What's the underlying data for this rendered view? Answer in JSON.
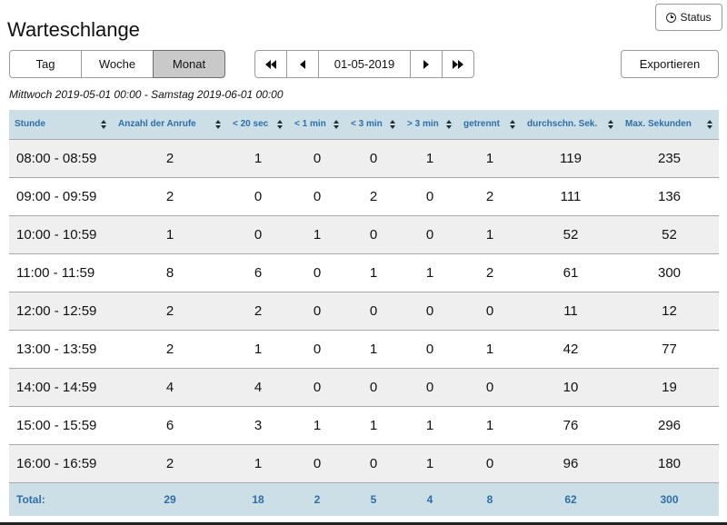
{
  "page": {
    "title": "Warteschlange"
  },
  "status_button": {
    "label": "Status",
    "icon": "clock-icon"
  },
  "period_tabs": [
    {
      "label": "Tag",
      "active": false
    },
    {
      "label": "Woche",
      "active": false
    },
    {
      "label": "Monat",
      "active": true
    }
  ],
  "date_nav": {
    "date": "01-05-2019",
    "icons": [
      "double-chevron-left-icon",
      "chevron-left-icon",
      "chevron-right-icon",
      "double-chevron-right-icon"
    ]
  },
  "export_button": {
    "label": "Exportieren"
  },
  "range_text": "Mittwoch 2019-05-01 00:00 - Samstag 2019-06-01 00:00",
  "table": {
    "columns": [
      "Stunde",
      "Anzahl der Anrufe",
      "< 20 sec",
      "< 1 min",
      "< 3 min",
      "> 3 min",
      "getrennt",
      "durchschn. Sek.",
      "Max. Sekunden"
    ],
    "rows": [
      [
        "08:00 - 08:59",
        "2",
        "1",
        "0",
        "0",
        "1",
        "1",
        "119",
        "235"
      ],
      [
        "09:00 - 09:59",
        "2",
        "0",
        "0",
        "2",
        "0",
        "2",
        "111",
        "136"
      ],
      [
        "10:00 - 10:59",
        "1",
        "0",
        "1",
        "0",
        "0",
        "1",
        "52",
        "52"
      ],
      [
        "11:00 - 11:59",
        "8",
        "6",
        "0",
        "1",
        "1",
        "2",
        "61",
        "300"
      ],
      [
        "12:00 - 12:59",
        "2",
        "2",
        "0",
        "0",
        "0",
        "0",
        "11",
        "12"
      ],
      [
        "13:00 - 13:59",
        "2",
        "1",
        "0",
        "1",
        "0",
        "1",
        "42",
        "77"
      ],
      [
        "14:00 - 14:59",
        "4",
        "4",
        "0",
        "0",
        "0",
        "0",
        "10",
        "19"
      ],
      [
        "15:00 - 15:59",
        "6",
        "3",
        "1",
        "1",
        "1",
        "1",
        "76",
        "296"
      ],
      [
        "16:00 - 16:59",
        "2",
        "1",
        "0",
        "0",
        "1",
        "0",
        "96",
        "180"
      ]
    ],
    "footer": [
      "Total:",
      "29",
      "18",
      "2",
      "5",
      "4",
      "8",
      "62",
      "300"
    ]
  },
  "colors": {
    "header_bg": "#ccdfe6",
    "header_text": "#2e6ea6",
    "row_alt": "#efefef",
    "active_tab": "#c9c9c9"
  }
}
